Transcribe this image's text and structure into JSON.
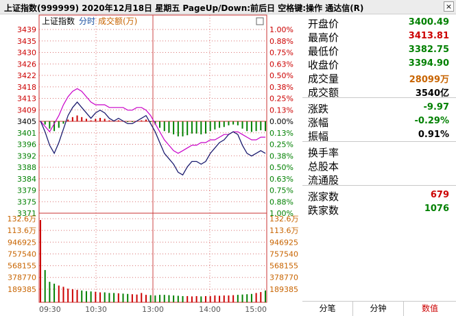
{
  "title": "上证指数(999999)  2020年12月18日 星期五 PageUp/Down:前后日 空格键:操作 通达信(R)",
  "close_label": "×",
  "legend": {
    "name": "上证指数",
    "fenshi": "分时",
    "volume": "成交额(万)"
  },
  "colors": {
    "up": "#cc0000",
    "down": "#008000",
    "price_line": "#1a1a6e",
    "avg_line": "#c800c8",
    "grid": "#c83232",
    "amount": "#c86400"
  },
  "price_ticks": [
    "3439",
    "3435",
    "3430",
    "3426",
    "3422",
    "3418",
    "3413",
    "3409",
    "3405",
    "3401",
    "3396",
    "3392",
    "3388",
    "3384",
    "3379",
    "3375",
    "3371"
  ],
  "pct_ticks": [
    "1.00%",
    "0.88%",
    "0.75%",
    "0.63%",
    "0.50%",
    "0.38%",
    "0.25%",
    "0.13%",
    "0.00%",
    "0.13%",
    "0.25%",
    "0.38%",
    "0.50%",
    "0.63%",
    "0.75%",
    "0.88%",
    "1.00%"
  ],
  "vol_ticks": [
    "132.6万",
    "113.6万",
    "946925",
    "757540",
    "568155",
    "378770",
    "189385"
  ],
  "time_ticks": [
    "09:30",
    "10:30",
    "13:00",
    "14:00",
    "15:00"
  ],
  "chart_data": {
    "type": "line",
    "prev_close": 3404.87,
    "price_range": [
      3370.82,
      3438.92
    ],
    "volume_max": 1326000,
    "price_points": [
      3405,
      3401,
      3396,
      3393,
      3397,
      3402,
      3407,
      3410,
      3412,
      3410,
      3408,
      3406,
      3408,
      3409,
      3408,
      3406,
      3405,
      3406,
      3405,
      3404,
      3404,
      3405,
      3406,
      3407,
      3404,
      3401,
      3397,
      3393,
      3391,
      3389,
      3386,
      3385,
      3388,
      3390,
      3390,
      3389,
      3390,
      3393,
      3395,
      3397,
      3398,
      3400,
      3401,
      3400,
      3396,
      3393,
      3392,
      3393,
      3394,
      3393
    ],
    "avg_points": [
      3405,
      3403,
      3401,
      3404,
      3407,
      3411,
      3414,
      3416,
      3417,
      3416,
      3414,
      3412,
      3411,
      3411,
      3411,
      3410,
      3410,
      3410,
      3410,
      3409,
      3409,
      3410,
      3410,
      3409,
      3407,
      3404,
      3401,
      3398,
      3396,
      3394,
      3393,
      3394,
      3395,
      3396,
      3396,
      3397,
      3397,
      3398,
      3398,
      3399,
      3400,
      3400,
      3401,
      3401,
      3400,
      3399,
      3398,
      3398,
      3399,
      3399
    ],
    "volume_points": [
      1326000,
      520000,
      330000,
      300000,
      270000,
      250000,
      220000,
      210000,
      200000,
      190000,
      180000,
      175000,
      170000,
      160000,
      160000,
      150000,
      150000,
      145000,
      140000,
      135000,
      130000,
      125000,
      150000,
      120000,
      115000,
      110000,
      120000,
      120000,
      115000,
      110000,
      105000,
      100000,
      100000,
      95000,
      100000,
      95000,
      100000,
      100000,
      110000,
      105000,
      110000,
      110000,
      115000,
      120000,
      125000,
      130000,
      135000,
      150000,
      165000,
      190000
    ]
  },
  "info": [
    {
      "label": "开盘价",
      "value": "3400.49",
      "color": "#008000"
    },
    {
      "label": "最高价",
      "value": "3413.81",
      "color": "#cc0000"
    },
    {
      "label": "最低价",
      "value": "3382.75",
      "color": "#008000"
    },
    {
      "label": "收盘价",
      "value": "3394.90",
      "color": "#008000"
    },
    {
      "label": "成交量",
      "value": "28099万",
      "color": "#c86400"
    },
    {
      "label": "成交额",
      "value": "3540亿",
      "color": "#000000"
    },
    {
      "label": "涨跌",
      "value": "-9.97",
      "color": "#008000"
    },
    {
      "label": "涨幅",
      "value": "-0.29%",
      "color": "#008000"
    },
    {
      "label": "振幅",
      "value": "0.91%",
      "color": "#000000"
    },
    {
      "label": "换手率",
      "value": "",
      "color": "#000000"
    },
    {
      "label": "总股本",
      "value": "",
      "color": "#000000"
    },
    {
      "label": "流通股",
      "value": "",
      "color": "#000000"
    },
    {
      "label": "涨家数",
      "value": "679",
      "color": "#cc0000"
    },
    {
      "label": "跌家数",
      "value": "1076",
      "color": "#008000"
    }
  ],
  "tabs": [
    "分笔",
    "分钟",
    "数值"
  ],
  "active_tab": 2
}
